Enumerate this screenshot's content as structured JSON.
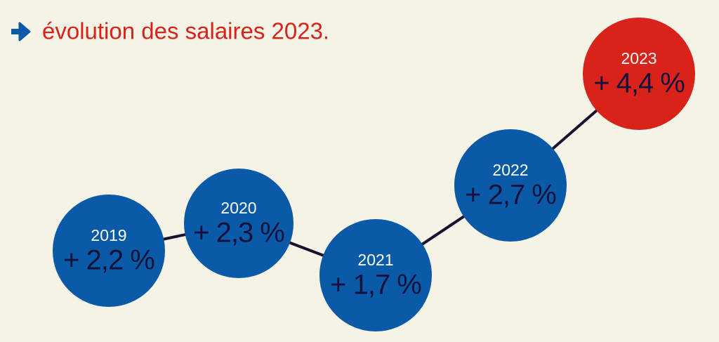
{
  "title": "évolution des salaires 2023.",
  "nodes": [
    {
      "year": "2019",
      "label": "+ 2,2 %"
    },
    {
      "year": "2020",
      "label": "+ 2,3 %"
    },
    {
      "year": "2021",
      "label": "+ 1,7 %"
    },
    {
      "year": "2022",
      "label": "+ 2,7 %"
    },
    {
      "year": "2023",
      "label": "+ 4,4 %"
    }
  ]
}
